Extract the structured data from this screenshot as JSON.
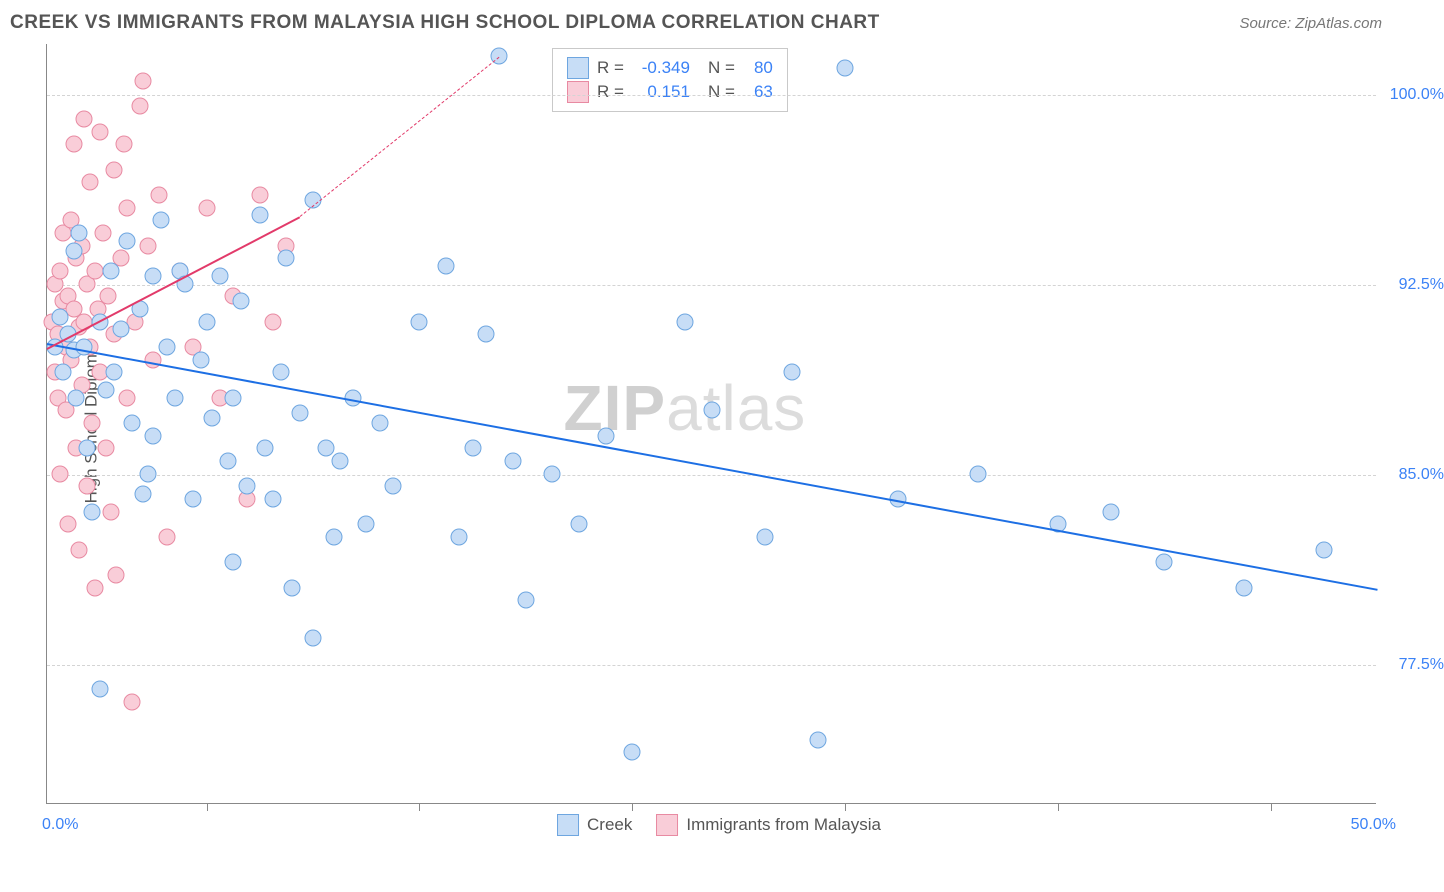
{
  "header": {
    "title": "CREEK VS IMMIGRANTS FROM MALAYSIA HIGH SCHOOL DIPLOMA CORRELATION CHART",
    "source_label": "Source: ZipAtlas.com"
  },
  "chart": {
    "type": "scatter",
    "ylabel": "High School Diploma",
    "xlim": [
      0,
      50
    ],
    "ylim": [
      72,
      102
    ],
    "x_axis_labels": {
      "min": "0.0%",
      "max": "50.0%"
    },
    "y_ticks": [
      77.5,
      85.0,
      92.5,
      100.0
    ],
    "y_tick_labels": [
      "77.5%",
      "85.0%",
      "92.5%",
      "100.0%"
    ],
    "x_ticks_visual": [
      6,
      14,
      22,
      30,
      38,
      46
    ],
    "background_color": "#ffffff",
    "grid_color": "#d4d4d4",
    "axis_color": "#888888",
    "tick_label_color": "#3b82f6",
    "axis_label_color": "#555555",
    "watermark": "ZIPatlas",
    "series": [
      {
        "name": "Creek",
        "marker_fill": "#c7ddf6",
        "marker_stroke": "#6ea6e0",
        "trend_color": "#1d6fe4",
        "trend": {
          "x1": 0,
          "y1": 90.2,
          "x2": 50,
          "y2": 80.5,
          "dashed_extension": false
        },
        "R": "-0.349",
        "N": "80",
        "points": [
          [
            0.3,
            90.0
          ],
          [
            0.5,
            91.2
          ],
          [
            0.6,
            89.0
          ],
          [
            0.8,
            90.5
          ],
          [
            1.0,
            93.8
          ],
          [
            1.0,
            89.9
          ],
          [
            1.1,
            88.0
          ],
          [
            1.2,
            94.5
          ],
          [
            1.4,
            90.0
          ],
          [
            1.5,
            86.0
          ],
          [
            1.7,
            83.5
          ],
          [
            2.0,
            91.0
          ],
          [
            2.0,
            76.5
          ],
          [
            2.2,
            88.3
          ],
          [
            2.4,
            93.0
          ],
          [
            2.5,
            89.0
          ],
          [
            2.8,
            90.7
          ],
          [
            3.0,
            94.2
          ],
          [
            3.2,
            87.0
          ],
          [
            3.5,
            91.5
          ],
          [
            3.6,
            84.2
          ],
          [
            3.8,
            85.0
          ],
          [
            4.0,
            92.8
          ],
          [
            4.0,
            86.5
          ],
          [
            4.3,
            95.0
          ],
          [
            4.5,
            90.0
          ],
          [
            4.8,
            88.0
          ],
          [
            5.0,
            93.0
          ],
          [
            5.2,
            92.5
          ],
          [
            5.5,
            84.0
          ],
          [
            5.8,
            89.5
          ],
          [
            6.0,
            91.0
          ],
          [
            6.2,
            87.2
          ],
          [
            6.5,
            92.8
          ],
          [
            6.8,
            85.5
          ],
          [
            7.0,
            88.0
          ],
          [
            7.0,
            81.5
          ],
          [
            7.3,
            91.8
          ],
          [
            7.5,
            84.5
          ],
          [
            8.0,
            95.2
          ],
          [
            8.2,
            86.0
          ],
          [
            8.5,
            84.0
          ],
          [
            8.8,
            89.0
          ],
          [
            9.0,
            93.5
          ],
          [
            9.2,
            80.5
          ],
          [
            9.5,
            87.4
          ],
          [
            10.0,
            95.8
          ],
          [
            10.0,
            78.5
          ],
          [
            10.5,
            86.0
          ],
          [
            10.8,
            82.5
          ],
          [
            11.0,
            85.5
          ],
          [
            11.5,
            88.0
          ],
          [
            12.0,
            83.0
          ],
          [
            12.5,
            87.0
          ],
          [
            13.0,
            84.5
          ],
          [
            14.0,
            91.0
          ],
          [
            15.0,
            93.2
          ],
          [
            15.5,
            82.5
          ],
          [
            16.0,
            86.0
          ],
          [
            16.5,
            90.5
          ],
          [
            17.0,
            101.5
          ],
          [
            17.5,
            85.5
          ],
          [
            18.0,
            80.0
          ],
          [
            19.0,
            85.0
          ],
          [
            20.0,
            83.0
          ],
          [
            21.0,
            86.5
          ],
          [
            22.0,
            74.0
          ],
          [
            24.0,
            91.0
          ],
          [
            25.0,
            87.5
          ],
          [
            27.0,
            82.5
          ],
          [
            28.0,
            89.0
          ],
          [
            29.0,
            74.5
          ],
          [
            30.0,
            101.0
          ],
          [
            32.0,
            84.0
          ],
          [
            35.0,
            85.0
          ],
          [
            38.0,
            83.0
          ],
          [
            40.0,
            83.5
          ],
          [
            42.0,
            81.5
          ],
          [
            45.0,
            80.5
          ],
          [
            48.0,
            82.0
          ]
        ]
      },
      {
        "name": "Immigrants from Malaysia",
        "marker_fill": "#f9cdd8",
        "marker_stroke": "#e88aa2",
        "trend_color": "#e23a6a",
        "trend": {
          "x1": 0,
          "y1": 90.0,
          "x2": 9.5,
          "y2": 95.2,
          "dashed_extension": true,
          "dash_x2": 17,
          "dash_y2": 101.5
        },
        "R": "0.151",
        "N": "63",
        "points": [
          [
            0.2,
            91.0
          ],
          [
            0.3,
            92.5
          ],
          [
            0.3,
            89.0
          ],
          [
            0.4,
            90.5
          ],
          [
            0.4,
            88.0
          ],
          [
            0.5,
            93.0
          ],
          [
            0.5,
            85.0
          ],
          [
            0.6,
            94.5
          ],
          [
            0.6,
            91.8
          ],
          [
            0.7,
            90.0
          ],
          [
            0.7,
            87.5
          ],
          [
            0.8,
            92.0
          ],
          [
            0.8,
            83.0
          ],
          [
            0.9,
            95.0
          ],
          [
            0.9,
            89.5
          ],
          [
            1.0,
            91.5
          ],
          [
            1.0,
            98.0
          ],
          [
            1.1,
            93.5
          ],
          [
            1.1,
            86.0
          ],
          [
            1.2,
            90.8
          ],
          [
            1.2,
            82.0
          ],
          [
            1.3,
            94.0
          ],
          [
            1.3,
            88.5
          ],
          [
            1.4,
            91.0
          ],
          [
            1.4,
            99.0
          ],
          [
            1.5,
            92.5
          ],
          [
            1.5,
            84.5
          ],
          [
            1.6,
            90.0
          ],
          [
            1.6,
            96.5
          ],
          [
            1.7,
            87.0
          ],
          [
            1.8,
            93.0
          ],
          [
            1.8,
            80.5
          ],
          [
            1.9,
            91.5
          ],
          [
            2.0,
            98.5
          ],
          [
            2.0,
            89.0
          ],
          [
            2.1,
            94.5
          ],
          [
            2.2,
            86.0
          ],
          [
            2.3,
            92.0
          ],
          [
            2.4,
            83.5
          ],
          [
            2.5,
            97.0
          ],
          [
            2.5,
            90.5
          ],
          [
            2.6,
            81.0
          ],
          [
            2.8,
            93.5
          ],
          [
            2.9,
            98.0
          ],
          [
            3.0,
            95.5
          ],
          [
            3.0,
            88.0
          ],
          [
            3.2,
            76.0
          ],
          [
            3.3,
            91.0
          ],
          [
            3.5,
            99.5
          ],
          [
            3.6,
            100.5
          ],
          [
            3.8,
            94.0
          ],
          [
            4.0,
            89.5
          ],
          [
            4.2,
            96.0
          ],
          [
            4.5,
            82.5
          ],
          [
            5.0,
            93.0
          ],
          [
            5.5,
            90.0
          ],
          [
            6.0,
            95.5
          ],
          [
            6.5,
            88.0
          ],
          [
            7.0,
            92.0
          ],
          [
            7.5,
            84.0
          ],
          [
            8.0,
            96.0
          ],
          [
            8.5,
            91.0
          ],
          [
            9.0,
            94.0
          ]
        ]
      }
    ],
    "footer_legend": [
      {
        "swatch_fill": "#c7ddf6",
        "swatch_stroke": "#6ea6e0",
        "label": "Creek"
      },
      {
        "swatch_fill": "#f9cdd8",
        "swatch_stroke": "#e88aa2",
        "label": "Immigrants from Malaysia"
      }
    ]
  }
}
